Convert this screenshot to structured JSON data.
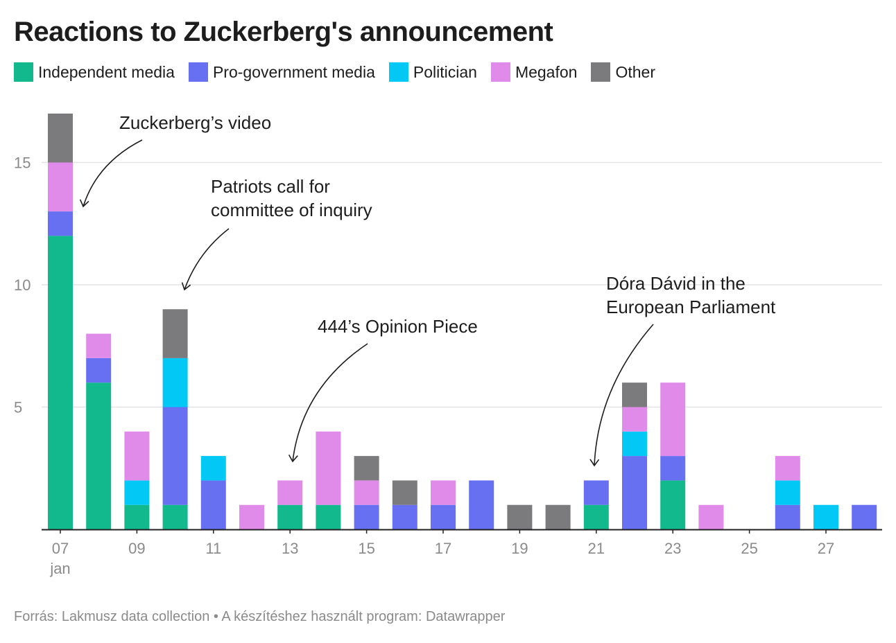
{
  "title": "Reactions to Zuckerberg's announcement",
  "source": "Forrás: Lakmusz data collection • A készítéshez használt program: Datawrapper",
  "chart_data": {
    "type": "bar",
    "stacked": true,
    "categories": [
      "07",
      "08",
      "09",
      "10",
      "11",
      "12",
      "13",
      "14",
      "15",
      "16",
      "17",
      "18",
      "19",
      "20",
      "21",
      "22",
      "23",
      "24",
      "25",
      "26",
      "27",
      "28"
    ],
    "x_tick_labels": [
      "07",
      "09",
      "11",
      "13",
      "15",
      "17",
      "19",
      "21",
      "23",
      "25",
      "27"
    ],
    "x_sub_label": "jan",
    "ylim": [
      0,
      17
    ],
    "y_ticks": [
      5,
      10,
      15
    ],
    "grid": true,
    "legend_position": "top-left",
    "series": [
      {
        "name": "Independent media",
        "color": "#12b98c",
        "values": [
          12,
          6,
          1,
          1,
          0,
          0,
          1,
          1,
          0,
          0,
          0,
          0,
          0,
          0,
          1,
          0,
          2,
          0,
          0,
          0,
          0,
          0
        ]
      },
      {
        "name": "Pro-government media",
        "color": "#6770f0",
        "values": [
          1,
          1,
          0,
          4,
          2,
          0,
          0,
          0,
          1,
          1,
          1,
          2,
          0,
          0,
          1,
          3,
          1,
          0,
          0,
          1,
          0,
          1
        ]
      },
      {
        "name": "Politician",
        "color": "#02c8f5",
        "values": [
          0,
          0,
          1,
          2,
          1,
          0,
          0,
          0,
          0,
          0,
          0,
          0,
          0,
          0,
          0,
          1,
          0,
          0,
          0,
          1,
          1,
          0
        ]
      },
      {
        "name": "Megafon",
        "color": "#e08bea",
        "values": [
          2,
          1,
          2,
          0,
          0,
          1,
          1,
          3,
          1,
          0,
          1,
          0,
          0,
          0,
          0,
          1,
          3,
          1,
          0,
          1,
          0,
          0
        ]
      },
      {
        "name": "Other",
        "color": "#7b7b7e",
        "values": [
          2,
          0,
          0,
          2,
          0,
          0,
          0,
          0,
          1,
          1,
          0,
          0,
          1,
          1,
          0,
          1,
          0,
          0,
          0,
          0,
          0,
          0
        ]
      }
    ],
    "annotations": [
      {
        "lines": [
          "Zuckerberg’s video"
        ],
        "target_category": "07",
        "target_value": 13
      },
      {
        "lines": [
          "Patriots call for",
          "committee of inquiry"
        ],
        "target_category": "10",
        "target_value": 10
      },
      {
        "lines": [
          "444’s Opinion Piece"
        ],
        "target_category": "13",
        "target_value": 2.7
      },
      {
        "lines": [
          "Dóra Dávid in the",
          "European Parliament"
        ],
        "target_category": "21",
        "target_value": 2.5
      }
    ]
  }
}
